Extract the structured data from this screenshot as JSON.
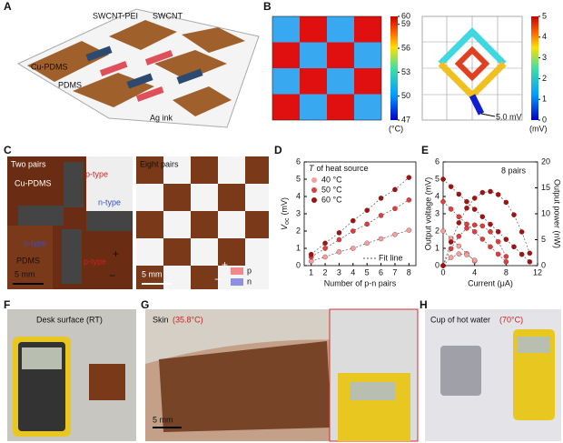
{
  "panel_labels": [
    "A",
    "B",
    "C",
    "D",
    "E",
    "F",
    "G",
    "H"
  ],
  "panel_a": {
    "labels": [
      "SWCNT-PEI",
      "SWCNT",
      "Cu-PDMS",
      "PDMS",
      "Ag ink"
    ]
  },
  "panel_b": {
    "temp_bar": {
      "lim": [
        47,
        60
      ],
      "ticks": [
        47,
        50,
        53,
        56,
        59,
        60
      ],
      "unit": "(°C)"
    },
    "volt_bar": {
      "lim": [
        0,
        5
      ],
      "ticks": [
        0,
        1,
        2,
        3,
        4,
        5
      ],
      "unit": "(mV)"
    },
    "annotation": "5.0 mV"
  },
  "panel_c": {
    "left": {
      "title": "Two pairs",
      "labels": [
        "Cu-PDMS",
        "p-type",
        "n-type",
        "n-type",
        "p-type",
        "PDMS",
        "+",
        "−"
      ],
      "scale": "5 mm"
    },
    "right": {
      "title": "Eight pairs",
      "scale": "5 mm",
      "legend": [
        "p",
        "n"
      ],
      "signs": [
        "+",
        "−"
      ]
    }
  },
  "chart_data": [
    {
      "type": "line",
      "x": [
        1,
        2,
        3,
        4,
        5,
        6,
        7,
        8
      ],
      "series": [
        {
          "name": "40 °C",
          "color": "#f2a0a0",
          "values": [
            0.25,
            0.5,
            0.8,
            1.0,
            1.3,
            1.55,
            1.8,
            2.05
          ]
        },
        {
          "name": "50 °C",
          "color": "#d94040",
          "values": [
            0.5,
            1.0,
            1.5,
            2.0,
            2.4,
            2.9,
            3.3,
            3.8
          ]
        },
        {
          "name": "60 °C",
          "color": "#9c1414",
          "values": [
            0.65,
            1.3,
            1.9,
            2.6,
            3.2,
            3.9,
            4.4,
            5.1
          ]
        }
      ],
      "xlim": [
        0.5,
        8.5
      ],
      "xticks": [
        1,
        2,
        3,
        4,
        5,
        6,
        7,
        8
      ],
      "ylim": [
        0,
        6
      ],
      "yticks": [
        0,
        1,
        2,
        3,
        4,
        5,
        6
      ],
      "xlabel": "Number of p-n pairs",
      "ylabel": "V",
      "ylabel_sub": "oc",
      "ylabel_unit": "(mV)",
      "legend_symbol": "T",
      "legend_title": "of heat source",
      "fit_label": "Fit line"
    },
    {
      "type": "dual",
      "x": [
        0,
        1,
        2,
        3,
        4,
        5,
        6,
        7,
        8,
        9,
        10,
        11
      ],
      "series": [
        {
          "color": "#f2a0a0",
          "values": [
            2.0,
            1.57,
            1.13,
            0.7,
            0.26,
            null,
            null,
            null,
            null,
            null,
            null,
            null
          ]
        },
        {
          "color": "#d94040",
          "values": [
            3.7,
            3.27,
            2.83,
            2.4,
            1.96,
            1.53,
            1.09,
            0.66,
            0.22,
            null,
            null,
            null
          ]
        },
        {
          "color": "#9c1414",
          "values": [
            5.0,
            4.57,
            4.13,
            3.7,
            3.26,
            2.83,
            2.39,
            1.96,
            1.52,
            1.09,
            0.65,
            0.22
          ]
        },
        {
          "color": "#f2a0a0",
          "axis": "y2",
          "values": [
            0,
            1.57,
            2.26,
            2.1,
            1.04,
            null,
            null,
            null,
            null,
            null,
            null,
            null
          ]
        },
        {
          "color": "#d94040",
          "axis": "y2",
          "values": [
            0,
            3.27,
            5.66,
            7.2,
            7.84,
            7.65,
            6.54,
            4.62,
            1.76,
            null,
            null,
            null
          ]
        },
        {
          "color": "#9c1414",
          "axis": "y2",
          "values": [
            0,
            4.57,
            8.26,
            11.1,
            13.0,
            14.1,
            14.3,
            13.7,
            12.2,
            9.8,
            6.5,
            2.4
          ]
        }
      ],
      "xlim": [
        0,
        12
      ],
      "xticks": [
        0,
        4,
        8,
        12
      ],
      "ylim": [
        0,
        6
      ],
      "yticks": [
        0,
        1,
        2,
        3,
        4,
        5,
        6
      ],
      "y2lim": [
        0,
        20
      ],
      "y2ticks": [
        0,
        5,
        10,
        15,
        20
      ],
      "xlabel": "Current (μA)",
      "ylabel": "Output voltage (mV)",
      "y2label": "Output power (nW)",
      "annotation": "8 pairs"
    }
  ],
  "panel_f": {
    "caption": "Desk surface (RT)"
  },
  "panel_g": {
    "caption": "Skin",
    "caption_temp": "(35.8°C)",
    "scale": "5 mm"
  },
  "panel_h": {
    "caption": "Cup of hot water",
    "caption_temp": "(70°C)"
  }
}
